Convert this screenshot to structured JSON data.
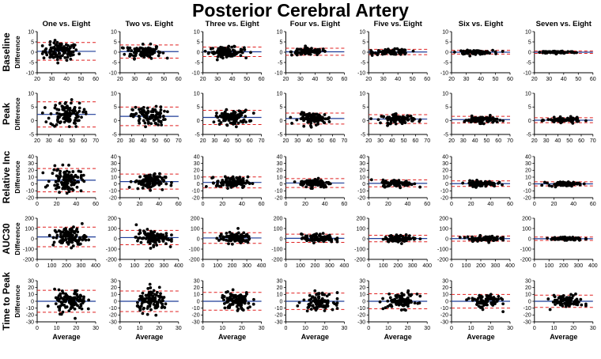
{
  "chart_data": {
    "type": "scatter",
    "subtype": "bland-altman-grid",
    "title": "Posterior Cerebral Artery",
    "xlabel": "Average",
    "ylabel": "Difference",
    "columns": [
      "One vs. Eight",
      "Two vs. Eight",
      "Three vs. Eight",
      "Four vs. Eight",
      "Five vs. Eight",
      "Six vs. Eight",
      "Seven vs. Eight"
    ],
    "colors": {
      "points": "#000000",
      "mean_line": "#1f3d99",
      "limit_lines": "#e02020",
      "axis": "#000000"
    },
    "rows": [
      {
        "label": "Baseline",
        "xlim": [
          20,
          60
        ],
        "xticks": [
          20,
          30,
          40,
          50,
          60
        ],
        "xcenter": 36,
        "xspread": 6,
        "ylim": [
          -10,
          10
        ],
        "yticks": [
          -10,
          -5,
          0,
          5,
          10
        ],
        "mean": [
          0.4,
          0.3,
          0.2,
          0.2,
          0.1,
          0.0,
          0.0
        ],
        "loa": [
          4.3,
          3.2,
          2.3,
          1.7,
          1.3,
          0.9,
          0.6
        ],
        "n": [
          110,
          105,
          100,
          95,
          90,
          85,
          80
        ]
      },
      {
        "label": "Peak",
        "xlim": [
          20,
          70
        ],
        "xticks": [
          20,
          30,
          40,
          50,
          60,
          70
        ],
        "xcenter": 45,
        "xspread": 7,
        "ylim": [
          -5,
          10
        ],
        "yticks": [
          -5,
          0,
          5,
          10
        ],
        "mean": [
          2.3,
          1.6,
          1.2,
          0.8,
          0.6,
          0.4,
          0.2
        ],
        "loa": [
          4.6,
          3.4,
          2.6,
          2.0,
          1.6,
          1.2,
          0.9
        ],
        "n": [
          110,
          105,
          100,
          95,
          90,
          85,
          80
        ]
      },
      {
        "label": "Relative Inc",
        "xlim": [
          0,
          60
        ],
        "xticks": [
          0,
          20,
          40,
          60
        ],
        "xcenter": 30,
        "xspread": 8,
        "ylim": [
          -20,
          40
        ],
        "yticks": [
          -20,
          -10,
          0,
          10,
          20,
          30,
          40
        ],
        "mean": [
          5.5,
          3.5,
          2.3,
          1.4,
          0.9,
          0.5,
          0.2
        ],
        "loa": [
          17,
          11,
          8,
          6.5,
          5,
          4,
          3
        ],
        "n": [
          110,
          105,
          100,
          95,
          90,
          85,
          80
        ]
      },
      {
        "label": "AUC30",
        "xlim": [
          0,
          400
        ],
        "xticks": [
          0,
          100,
          200,
          300,
          400
        ],
        "xcenter": 220,
        "xspread": 55,
        "ylim": [
          -200,
          200
        ],
        "yticks": [
          -200,
          -100,
          0,
          100,
          200
        ],
        "mean": [
          18,
          12,
          8,
          5,
          3,
          2,
          1
        ],
        "loa": [
          95,
          70,
          52,
          40,
          32,
          25,
          16
        ],
        "n": [
          110,
          105,
          100,
          95,
          90,
          85,
          80
        ]
      },
      {
        "label": "Time to Peak",
        "xlim": [
          0,
          30
        ],
        "xticks": [
          0,
          10,
          20,
          30
        ],
        "xcenter": 17,
        "xspread": 4,
        "ylim": [
          -30,
          30
        ],
        "yticks": [
          -30,
          -20,
          -10,
          0,
          10,
          20,
          30
        ],
        "mean": [
          0,
          0,
          0,
          0,
          0,
          0,
          0
        ],
        "loa": [
          16,
          15,
          13,
          12,
          11,
          10,
          9
        ],
        "n": [
          110,
          105,
          100,
          95,
          90,
          85,
          80
        ]
      }
    ]
  }
}
